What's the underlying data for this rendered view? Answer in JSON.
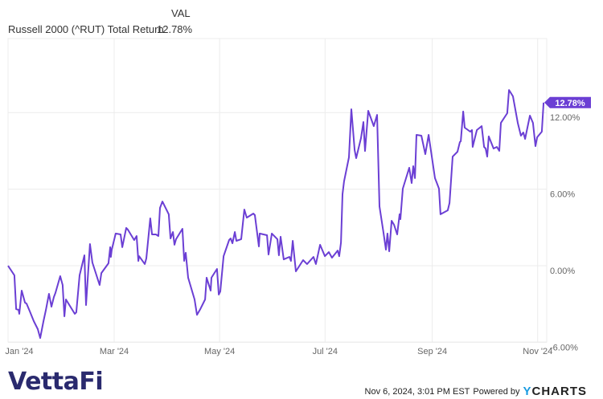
{
  "legend": {
    "column_header": "VAL",
    "series_name": "Russell 2000 (^RUT) Total Return",
    "series_value": "12.78%"
  },
  "footer": {
    "timestamp": "Nov 6, 2024, 3:01 PM EST",
    "powered_by": "Powered by",
    "brand_y": "Y",
    "brand_rest": "CHARTS",
    "logo": "VettaFi"
  },
  "colors": {
    "line": "#6b3fd4",
    "grid": "#ececec",
    "logo": "#2a2a6e",
    "ycharts": "#1a9be0"
  },
  "chart_data": {
    "type": "line",
    "title": "",
    "xlabel": "",
    "ylabel": "",
    "x_unit": "days since Jan 1, 2024",
    "ylim": [
      -6,
      14.5
    ],
    "xlim": [
      -1.5,
      311
    ],
    "x_ticks": [
      {
        "value": 0,
        "label": "Jan '24"
      },
      {
        "value": 60,
        "label": "Mar '24"
      },
      {
        "value": 121,
        "label": "May '24"
      },
      {
        "value": 182,
        "label": "Jul '24"
      },
      {
        "value": 244,
        "label": "Sep '24"
      },
      {
        "value": 305,
        "label": "Nov '24"
      }
    ],
    "y_ticks": [
      {
        "value": -6,
        "label": "-6.00%"
      },
      {
        "value": 0,
        "label": "0.00%"
      },
      {
        "value": 6,
        "label": "6.00%"
      },
      {
        "value": 12,
        "label": "12.00%"
      }
    ],
    "grid": true,
    "last_value_label": "12.78%",
    "series": [
      {
        "name": "Russell 2000 (^RUT) Total Return",
        "points": [
          [
            -1.4,
            0
          ],
          [
            2.3,
            -0.75
          ],
          [
            3.3,
            -3.4
          ],
          [
            4.7,
            -3.46
          ],
          [
            5.1,
            -3.77
          ],
          [
            6.5,
            -1.95
          ],
          [
            8.4,
            -2.89
          ],
          [
            9.3,
            -2.96
          ],
          [
            11.2,
            -3.58
          ],
          [
            13.5,
            -4.34
          ],
          [
            15.8,
            -4.97
          ],
          [
            17.2,
            -5.66
          ],
          [
            19.1,
            -4.34
          ],
          [
            20.5,
            -3.46
          ],
          [
            22.3,
            -2.2
          ],
          [
            23.7,
            -3.21
          ],
          [
            25.1,
            -2.45
          ],
          [
            26.0,
            -2.14
          ],
          [
            28.8,
            -0.82
          ],
          [
            30.2,
            -1.51
          ],
          [
            31.2,
            -3.96
          ],
          [
            32.1,
            -2.64
          ],
          [
            37.2,
            -3.77
          ],
          [
            38.1,
            -3.65
          ],
          [
            40.0,
            -0.75
          ],
          [
            42.8,
            0.82
          ],
          [
            43.7,
            -3.08
          ],
          [
            46.0,
            1.7
          ],
          [
            47.4,
            0.25
          ],
          [
            51.6,
            -1.51
          ],
          [
            52.6,
            -0.57
          ],
          [
            56.7,
            0.19
          ],
          [
            57.7,
            1.45
          ],
          [
            58.1,
            0.69
          ],
          [
            58.6,
            1.26
          ],
          [
            60.9,
            2.52
          ],
          [
            63.7,
            2.45
          ],
          [
            64.7,
            1.45
          ],
          [
            67.0,
            2.96
          ],
          [
            67.9,
            2.83
          ],
          [
            71.6,
            2.01
          ],
          [
            73.0,
            2.33
          ],
          [
            74.0,
            0.38
          ],
          [
            74.4,
            0.75
          ],
          [
            77.7,
            0.13
          ],
          [
            78.6,
            0.57
          ],
          [
            80.9,
            3.71
          ],
          [
            81.9,
            2.45
          ],
          [
            84.2,
            2.45
          ],
          [
            85.6,
            2.33
          ],
          [
            86.5,
            4.53
          ],
          [
            87.9,
            5.03
          ],
          [
            91.6,
            4.03
          ],
          [
            92.6,
            2.14
          ],
          [
            94.0,
            2.64
          ],
          [
            94.9,
            1.64
          ],
          [
            95.8,
            2.08
          ],
          [
            99.5,
            2.89
          ],
          [
            100.5,
            0.38
          ],
          [
            101.4,
            1.01
          ],
          [
            102.8,
            -0.94
          ],
          [
            106.5,
            -2.64
          ],
          [
            107.9,
            -3.84
          ],
          [
            109.8,
            -3.4
          ],
          [
            112.6,
            -2.64
          ],
          [
            113.5,
            -0.94
          ],
          [
            115.8,
            -1.95
          ],
          [
            116.3,
            -0.94
          ],
          [
            119.5,
            -0.25
          ],
          [
            120.5,
            -2.26
          ],
          [
            121.4,
            -2.01
          ],
          [
            123.3,
            0.75
          ],
          [
            126.5,
            2.01
          ],
          [
            127.4,
            2.14
          ],
          [
            128.4,
            1.76
          ],
          [
            129.8,
            2.64
          ],
          [
            130.7,
            1.95
          ],
          [
            133.5,
            2.08
          ],
          [
            135.3,
            4.4
          ],
          [
            136.7,
            3.77
          ],
          [
            140.5,
            4.09
          ],
          [
            141.4,
            3.96
          ],
          [
            143.7,
            1.51
          ],
          [
            144.2,
            2.52
          ],
          [
            148.4,
            2.39
          ],
          [
            149.3,
            0.88
          ],
          [
            151.2,
            2.52
          ],
          [
            154.4,
            2.08
          ],
          [
            155.3,
            0.82
          ],
          [
            156.3,
            2.27
          ],
          [
            158.1,
            0.5
          ],
          [
            161.4,
            0.69
          ],
          [
            162.3,
            0.38
          ],
          [
            163.3,
            1.95
          ],
          [
            165.1,
            -0.44
          ],
          [
            169.3,
            0.44
          ],
          [
            171.6,
            0.13
          ],
          [
            175.3,
            0.69
          ],
          [
            176.7,
            0.13
          ],
          [
            179.1,
            1.64
          ],
          [
            181.9,
            0.75
          ],
          [
            184.2,
            1.07
          ],
          [
            186.0,
            0.63
          ],
          [
            189.3,
            1.19
          ],
          [
            190.2,
            0.75
          ],
          [
            191.2,
            1.82
          ],
          [
            192.1,
            5.6
          ],
          [
            193.0,
            6.6
          ],
          [
            195.8,
            8.49
          ],
          [
            197.2,
            12.26
          ],
          [
            199.1,
            9.06
          ],
          [
            200.0,
            8.43
          ],
          [
            202.8,
            10.0
          ],
          [
            204.2,
            11.26
          ],
          [
            205.1,
            8.99
          ],
          [
            207.0,
            12.14
          ],
          [
            210.2,
            10.94
          ],
          [
            212.1,
            11.82
          ],
          [
            213.5,
            4.65
          ],
          [
            215.8,
            2.58
          ],
          [
            217.2,
            1.26
          ],
          [
            218.1,
            2.52
          ],
          [
            219.1,
            1.13
          ],
          [
            220.5,
            3.52
          ],
          [
            221.9,
            3.21
          ],
          [
            223.7,
            2.45
          ],
          [
            225.1,
            4.03
          ],
          [
            225.6,
            3.65
          ],
          [
            227.0,
            6.04
          ],
          [
            230.7,
            7.67
          ],
          [
            232.1,
            6.48
          ],
          [
            233.0,
            7.8
          ],
          [
            234.0,
            6.86
          ],
          [
            234.9,
            10.25
          ],
          [
            237.7,
            10.19
          ],
          [
            240.0,
            8.74
          ],
          [
            241.9,
            10.25
          ],
          [
            245.6,
            6.86
          ],
          [
            246.5,
            6.54
          ],
          [
            247.9,
            6.04
          ],
          [
            248.8,
            4.03
          ],
          [
            253.0,
            4.34
          ],
          [
            254.0,
            4.91
          ],
          [
            255.8,
            8.55
          ],
          [
            258.6,
            8.93
          ],
          [
            260.0,
            9.69
          ],
          [
            260.5,
            9.75
          ],
          [
            261.9,
            12.08
          ],
          [
            262.8,
            10.82
          ],
          [
            266.0,
            10.5
          ],
          [
            267.0,
            10.63
          ],
          [
            267.4,
            9.31
          ],
          [
            269.8,
            10.63
          ],
          [
            272.6,
            10.94
          ],
          [
            274.0,
            9.31
          ],
          [
            274.9,
            9.18
          ],
          [
            275.8,
            8.55
          ],
          [
            276.7,
            10.13
          ],
          [
            279.5,
            9.18
          ],
          [
            281.4,
            9.31
          ],
          [
            282.8,
            9.0
          ],
          [
            283.7,
            11.19
          ],
          [
            287.4,
            11.95
          ],
          [
            288.4,
            13.77
          ],
          [
            290.7,
            13.27
          ],
          [
            293.5,
            11.19
          ],
          [
            295.3,
            10.19
          ],
          [
            296.7,
            10.44
          ],
          [
            297.7,
            9.94
          ],
          [
            300.5,
            11.76
          ],
          [
            302.3,
            11.19
          ],
          [
            303.7,
            9.37
          ],
          [
            304.7,
            10.06
          ],
          [
            307.4,
            10.5
          ],
          [
            308.4,
            12.78
          ]
        ]
      }
    ]
  }
}
